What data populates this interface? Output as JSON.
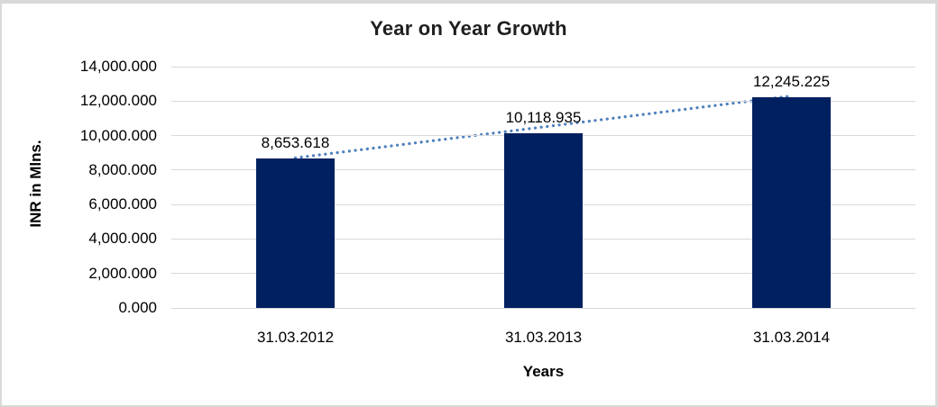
{
  "window": {
    "background": "#ffffff",
    "border_color": "#d9d9d9"
  },
  "chart_data": {
    "type": "bar",
    "title": "Year on Year Growth",
    "xlabel": "Years",
    "ylabel": "INR in Mlns.",
    "categories": [
      "31.03.2012",
      "31.03.2013",
      "31.03.2014"
    ],
    "values": [
      8653.618,
      10118.935,
      12245.225
    ],
    "value_labels": [
      "8,653.618",
      "10,118.935",
      "12,245.225"
    ],
    "ylim": [
      0,
      14000
    ],
    "y_ticks": [
      0,
      2000,
      4000,
      6000,
      8000,
      10000,
      12000,
      14000
    ],
    "y_tick_labels": [
      "0.000",
      "2,000.000",
      "4,000.000",
      "6,000.000",
      "8,000.000",
      "10,000.000",
      "12,000.000",
      "14,000.000"
    ],
    "grid": true,
    "legend": false,
    "trendline": {
      "type": "linear",
      "style": "dotted",
      "from_category": "31.03.2012",
      "to_category": "31.03.2014"
    },
    "colors": {
      "bar": "#002060",
      "trendline": "#4f81bd",
      "gridline": "#d9d9d9",
      "text": "#000000"
    }
  }
}
